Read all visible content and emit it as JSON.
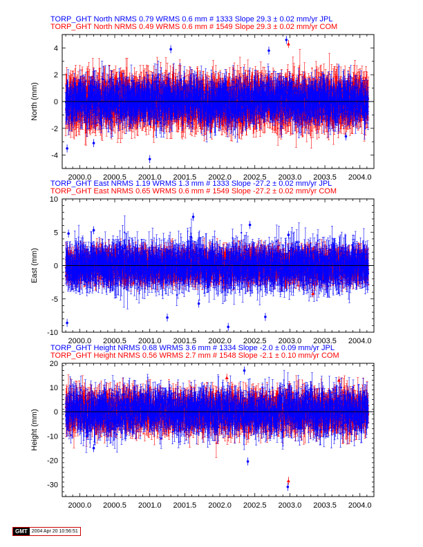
{
  "stamp": {
    "logo": "GMT",
    "timestamp": "2004 Apr 20 10:56:51"
  },
  "colors": {
    "jpl": "#0000ff",
    "com": "#ff0000",
    "axis": "#000000",
    "zero_line": "#000000"
  },
  "chart_data": [
    {
      "type": "scatter",
      "component": "North",
      "ylabel": "North (mm)",
      "xlim": [
        1999.75,
        2004.2
      ],
      "ylim": [
        -5,
        5
      ],
      "xticks": [
        "2000.0",
        "2000.5",
        "2001.0",
        "2001.5",
        "2002.0",
        "2002.5",
        "2003.0",
        "2003.5",
        "2004.0"
      ],
      "yticks": [
        "-4",
        "-2",
        "0",
        "2",
        "4"
      ],
      "header_lines": [
        {
          "text": "TORP_GHT North NRMS 0.79 WRMS  0.6 mm # 1333 Slope   29.3 ±  0.02 mm/yr JPL",
          "color": "#0000ff"
        },
        {
          "text": "TORP_GHT North NRMS 0.49 WRMS  0.6 mm # 1549 Slope   29.3 ±  0.02 mm/yr COM",
          "color": "#ff0000"
        }
      ],
      "series": [
        {
          "name": "JPL",
          "color": "#0000ff",
          "count": 1333,
          "nrms": 0.79,
          "wrms_mm": 0.6,
          "slope_mm_yr": 29.3,
          "slope_sigma": 0.02,
          "time_range": [
            1999.8,
            2004.12
          ],
          "typical_scatter_mm": 0.6,
          "typical_error_bar_mm": 1.0
        },
        {
          "name": "COM",
          "color": "#ff0000",
          "count": 1549,
          "nrms": 0.49,
          "wrms_mm": 0.6,
          "slope_mm_yr": 29.3,
          "slope_sigma": 0.02,
          "time_range": [
            1999.8,
            2004.12
          ],
          "typical_scatter_mm": 0.6,
          "typical_error_bar_mm": 1.3
        }
      ],
      "notable_points": [
        {
          "x": 1999.82,
          "y": -3.5,
          "series": "JPL"
        },
        {
          "x": 2000.2,
          "y": -3.1,
          "series": "JPL"
        },
        {
          "x": 2001.0,
          "y": -4.3,
          "series": "JPL"
        },
        {
          "x": 2001.3,
          "y": 3.9,
          "series": "JPL"
        },
        {
          "x": 2002.7,
          "y": 3.8,
          "series": "JPL"
        },
        {
          "x": 2002.95,
          "y": 4.6,
          "series": "JPL"
        },
        {
          "x": 2002.98,
          "y": 4.3,
          "series": "COM"
        },
        {
          "x": 2003.8,
          "y": -2.6,
          "series": "JPL"
        }
      ]
    },
    {
      "type": "scatter",
      "component": "East",
      "ylabel": "East (mm)",
      "xlim": [
        1999.75,
        2004.2
      ],
      "ylim": [
        -10,
        10
      ],
      "xticks": [
        "2000.0",
        "2000.5",
        "2001.0",
        "2001.5",
        "2002.0",
        "2002.5",
        "2003.0",
        "2003.5",
        "2004.0"
      ],
      "yticks": [
        "-10",
        "-5",
        "0",
        "5",
        "10"
      ],
      "header_lines": [
        {
          "text": "TORP_GHT East NRMS 1.19 WRMS  1.3 mm # 1333 Slope  -27.2 ±  0.02 mm/yr JPL",
          "color": "#0000ff"
        },
        {
          "text": "TORP_GHT East NRMS 0.65 WRMS  0.6 mm # 1549 Slope  -27.2 ±  0.02 mm/yr COM",
          "color": "#ff0000"
        }
      ],
      "series": [
        {
          "name": "JPL",
          "color": "#0000ff",
          "count": 1333,
          "nrms": 1.19,
          "wrms_mm": 1.3,
          "slope_mm_yr": -27.2,
          "slope_sigma": 0.02,
          "time_range": [
            1999.8,
            2004.12
          ],
          "typical_scatter_mm": 1.3,
          "typical_error_bar_mm": 2.0
        },
        {
          "name": "COM",
          "color": "#ff0000",
          "count": 1549,
          "nrms": 0.65,
          "wrms_mm": 0.6,
          "slope_mm_yr": -27.2,
          "slope_sigma": 0.02,
          "time_range": [
            1999.8,
            2004.12
          ],
          "typical_scatter_mm": 0.6,
          "typical_error_bar_mm": 1.8
        }
      ],
      "notable_points": [
        {
          "x": 1999.82,
          "y": -8.6,
          "series": "JPL"
        },
        {
          "x": 1999.84,
          "y": 4.8,
          "series": "JPL"
        },
        {
          "x": 2000.2,
          "y": 5.3,
          "series": "JPL"
        },
        {
          "x": 2001.25,
          "y": -7.8,
          "series": "JPL"
        },
        {
          "x": 2001.62,
          "y": 7.3,
          "series": "JPL"
        },
        {
          "x": 2001.7,
          "y": -5.7,
          "series": "JPL"
        },
        {
          "x": 2002.12,
          "y": -9.2,
          "series": "JPL"
        },
        {
          "x": 2002.43,
          "y": 6.1,
          "series": "JPL"
        },
        {
          "x": 2002.65,
          "y": -7.7,
          "series": "JPL"
        },
        {
          "x": 2002.98,
          "y": 4.6,
          "series": "JPL"
        },
        {
          "x": 2003.33,
          "y": -4.2,
          "series": "COM"
        }
      ]
    },
    {
      "type": "scatter",
      "component": "Height",
      "ylabel": "Height (mm)",
      "xlim": [
        1999.75,
        2004.2
      ],
      "ylim": [
        -35,
        20
      ],
      "xticks": [
        "2000.0",
        "2000.5",
        "2001.0",
        "2001.5",
        "2002.0",
        "2002.5",
        "2003.0",
        "2003.5",
        "2004.0"
      ],
      "yticks": [
        "-30",
        "-20",
        "-10",
        "0",
        "10",
        "20"
      ],
      "header_lines": [
        {
          "text": "TORP_GHT Height NRMS 0.68 WRMS  3.6 mm # 1334 Slope   -2.0 ±  0.09 mm/yr JPL",
          "color": "#0000ff"
        },
        {
          "text": "TORP_GHT Height NRMS 0.56 WRMS  2.7 mm # 1548 Slope   -2.1 ±  0.10 mm/yr COM",
          "color": "#ff0000"
        }
      ],
      "series": [
        {
          "name": "JPL",
          "color": "#0000ff",
          "count": 1334,
          "nrms": 0.68,
          "wrms_mm": 3.6,
          "slope_mm_yr": -2.0,
          "slope_sigma": 0.09,
          "time_range": [
            1999.8,
            2004.12
          ],
          "typical_scatter_mm": 3.6,
          "typical_error_bar_mm": 5.0
        },
        {
          "name": "COM",
          "color": "#ff0000",
          "count": 1548,
          "nrms": 0.56,
          "wrms_mm": 2.7,
          "slope_mm_yr": -2.1,
          "slope_sigma": 0.1,
          "time_range": [
            1999.8,
            2004.12
          ],
          "typical_scatter_mm": 2.7,
          "typical_error_bar_mm": 5.5
        }
      ],
      "notable_points": [
        {
          "x": 2000.2,
          "y": -15.0,
          "series": "JPL"
        },
        {
          "x": 2002.4,
          "y": -20.5,
          "series": "JPL"
        },
        {
          "x": 2002.35,
          "y": 17.0,
          "series": "JPL"
        },
        {
          "x": 2002.97,
          "y": -31.0,
          "series": "JPL"
        },
        {
          "x": 2002.98,
          "y": -28.5,
          "series": "COM"
        },
        {
          "x": 2002.1,
          "y": 14.0,
          "series": "COM"
        },
        {
          "x": 2003.7,
          "y": 13.0,
          "series": "COM"
        }
      ]
    }
  ]
}
